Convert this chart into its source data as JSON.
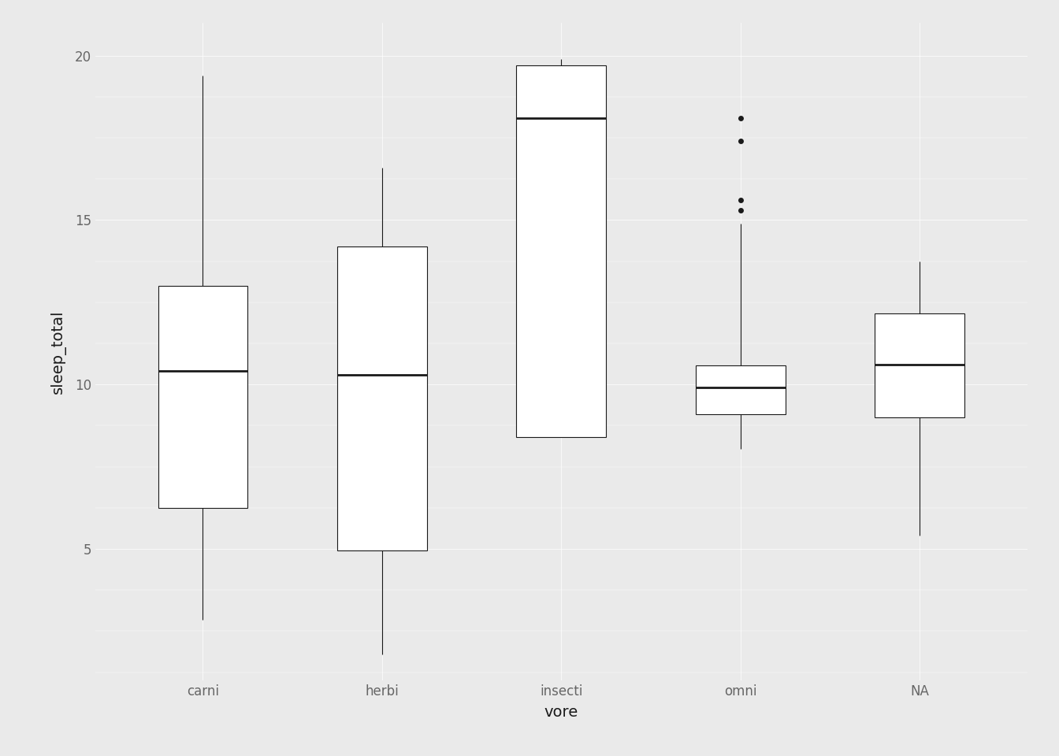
{
  "categories": [
    "carni",
    "herbi",
    "insecti",
    "omni",
    "NA"
  ],
  "boxes": [
    {
      "label": "carni",
      "q1": 6.25,
      "median": 10.4,
      "q3": 13.0,
      "whisker_low": 2.85,
      "whisker_high": 19.4,
      "outliers": []
    },
    {
      "label": "herbi",
      "q1": 4.95,
      "median": 10.3,
      "q3": 14.2,
      "whisker_low": 1.8,
      "whisker_high": 16.6,
      "outliers": []
    },
    {
      "label": "insecti",
      "q1": 8.4,
      "median": 18.1,
      "q3": 19.7,
      "whisker_low": 8.4,
      "whisker_high": 19.9,
      "outliers": []
    },
    {
      "label": "omni",
      "q1": 9.1,
      "median": 9.9,
      "q3": 10.57,
      "whisker_low": 8.05,
      "whisker_high": 14.9,
      "outliers": [
        15.3,
        15.6,
        17.4,
        18.1
      ]
    },
    {
      "label": "NA",
      "q1": 9.0,
      "median": 10.6,
      "q3": 12.15,
      "whisker_low": 5.4,
      "whisker_high": 13.75,
      "outliers": []
    }
  ],
  "xlabel": "vore",
  "ylabel": "sleep_total",
  "ylim": [
    1.0,
    21.0
  ],
  "yticks": [
    5,
    10,
    15,
    20
  ],
  "background_color": "#EAEAEA",
  "panel_background": "#EAEAEA",
  "box_fill": "#FFFFFF",
  "box_edge_color": "#1A1A1A",
  "median_color": "#1A1A1A",
  "whisker_color": "#1A1A1A",
  "grid_color": "#FFFFFF",
  "xlabel_fontsize": 14,
  "ylabel_fontsize": 14,
  "tick_fontsize": 12,
  "xtick_color": "#666666",
  "ytick_color": "#666666",
  "box_width": 0.5,
  "line_width": 0.8,
  "median_lw": 2.0,
  "outlier_size": 5
}
